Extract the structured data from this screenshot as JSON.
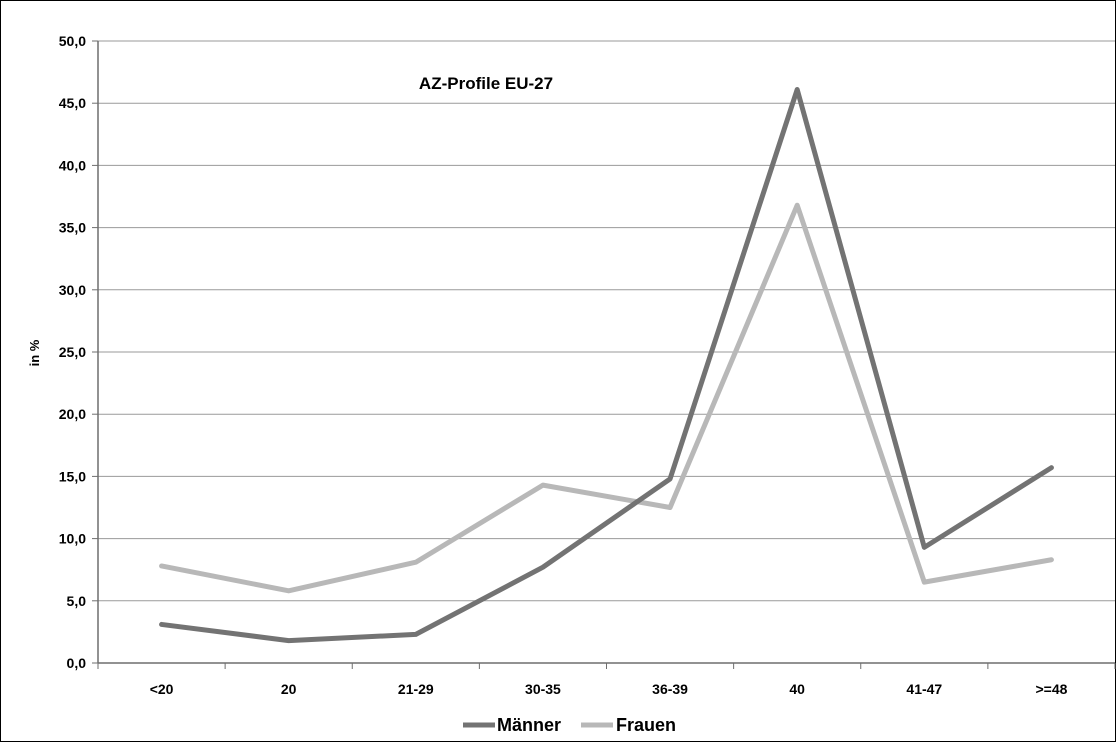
{
  "chart_data": {
    "type": "line",
    "title": "AZ-Profile EU-27",
    "xlabel": "",
    "ylabel": "in %",
    "categories": [
      "<20",
      "20",
      "21-29",
      "30-35",
      "36-39",
      "40",
      "41-47",
      ">=48"
    ],
    "ylim": [
      0,
      50
    ],
    "yticks": [
      "0,0",
      "5,0",
      "10,0",
      "15,0",
      "20,0",
      "25,0",
      "30,0",
      "35,0",
      "40,0",
      "45,0",
      "50,0"
    ],
    "grid": true,
    "legend_position": "bottom",
    "series": [
      {
        "name": "Männer",
        "color": "#737373",
        "values": [
          3.1,
          1.8,
          2.3,
          7.7,
          14.8,
          46.1,
          9.3,
          15.7
        ]
      },
      {
        "name": "Frauen",
        "color": "#b8b8b8",
        "values": [
          7.8,
          5.8,
          8.1,
          14.3,
          12.5,
          36.8,
          6.5,
          8.3
        ]
      }
    ]
  }
}
